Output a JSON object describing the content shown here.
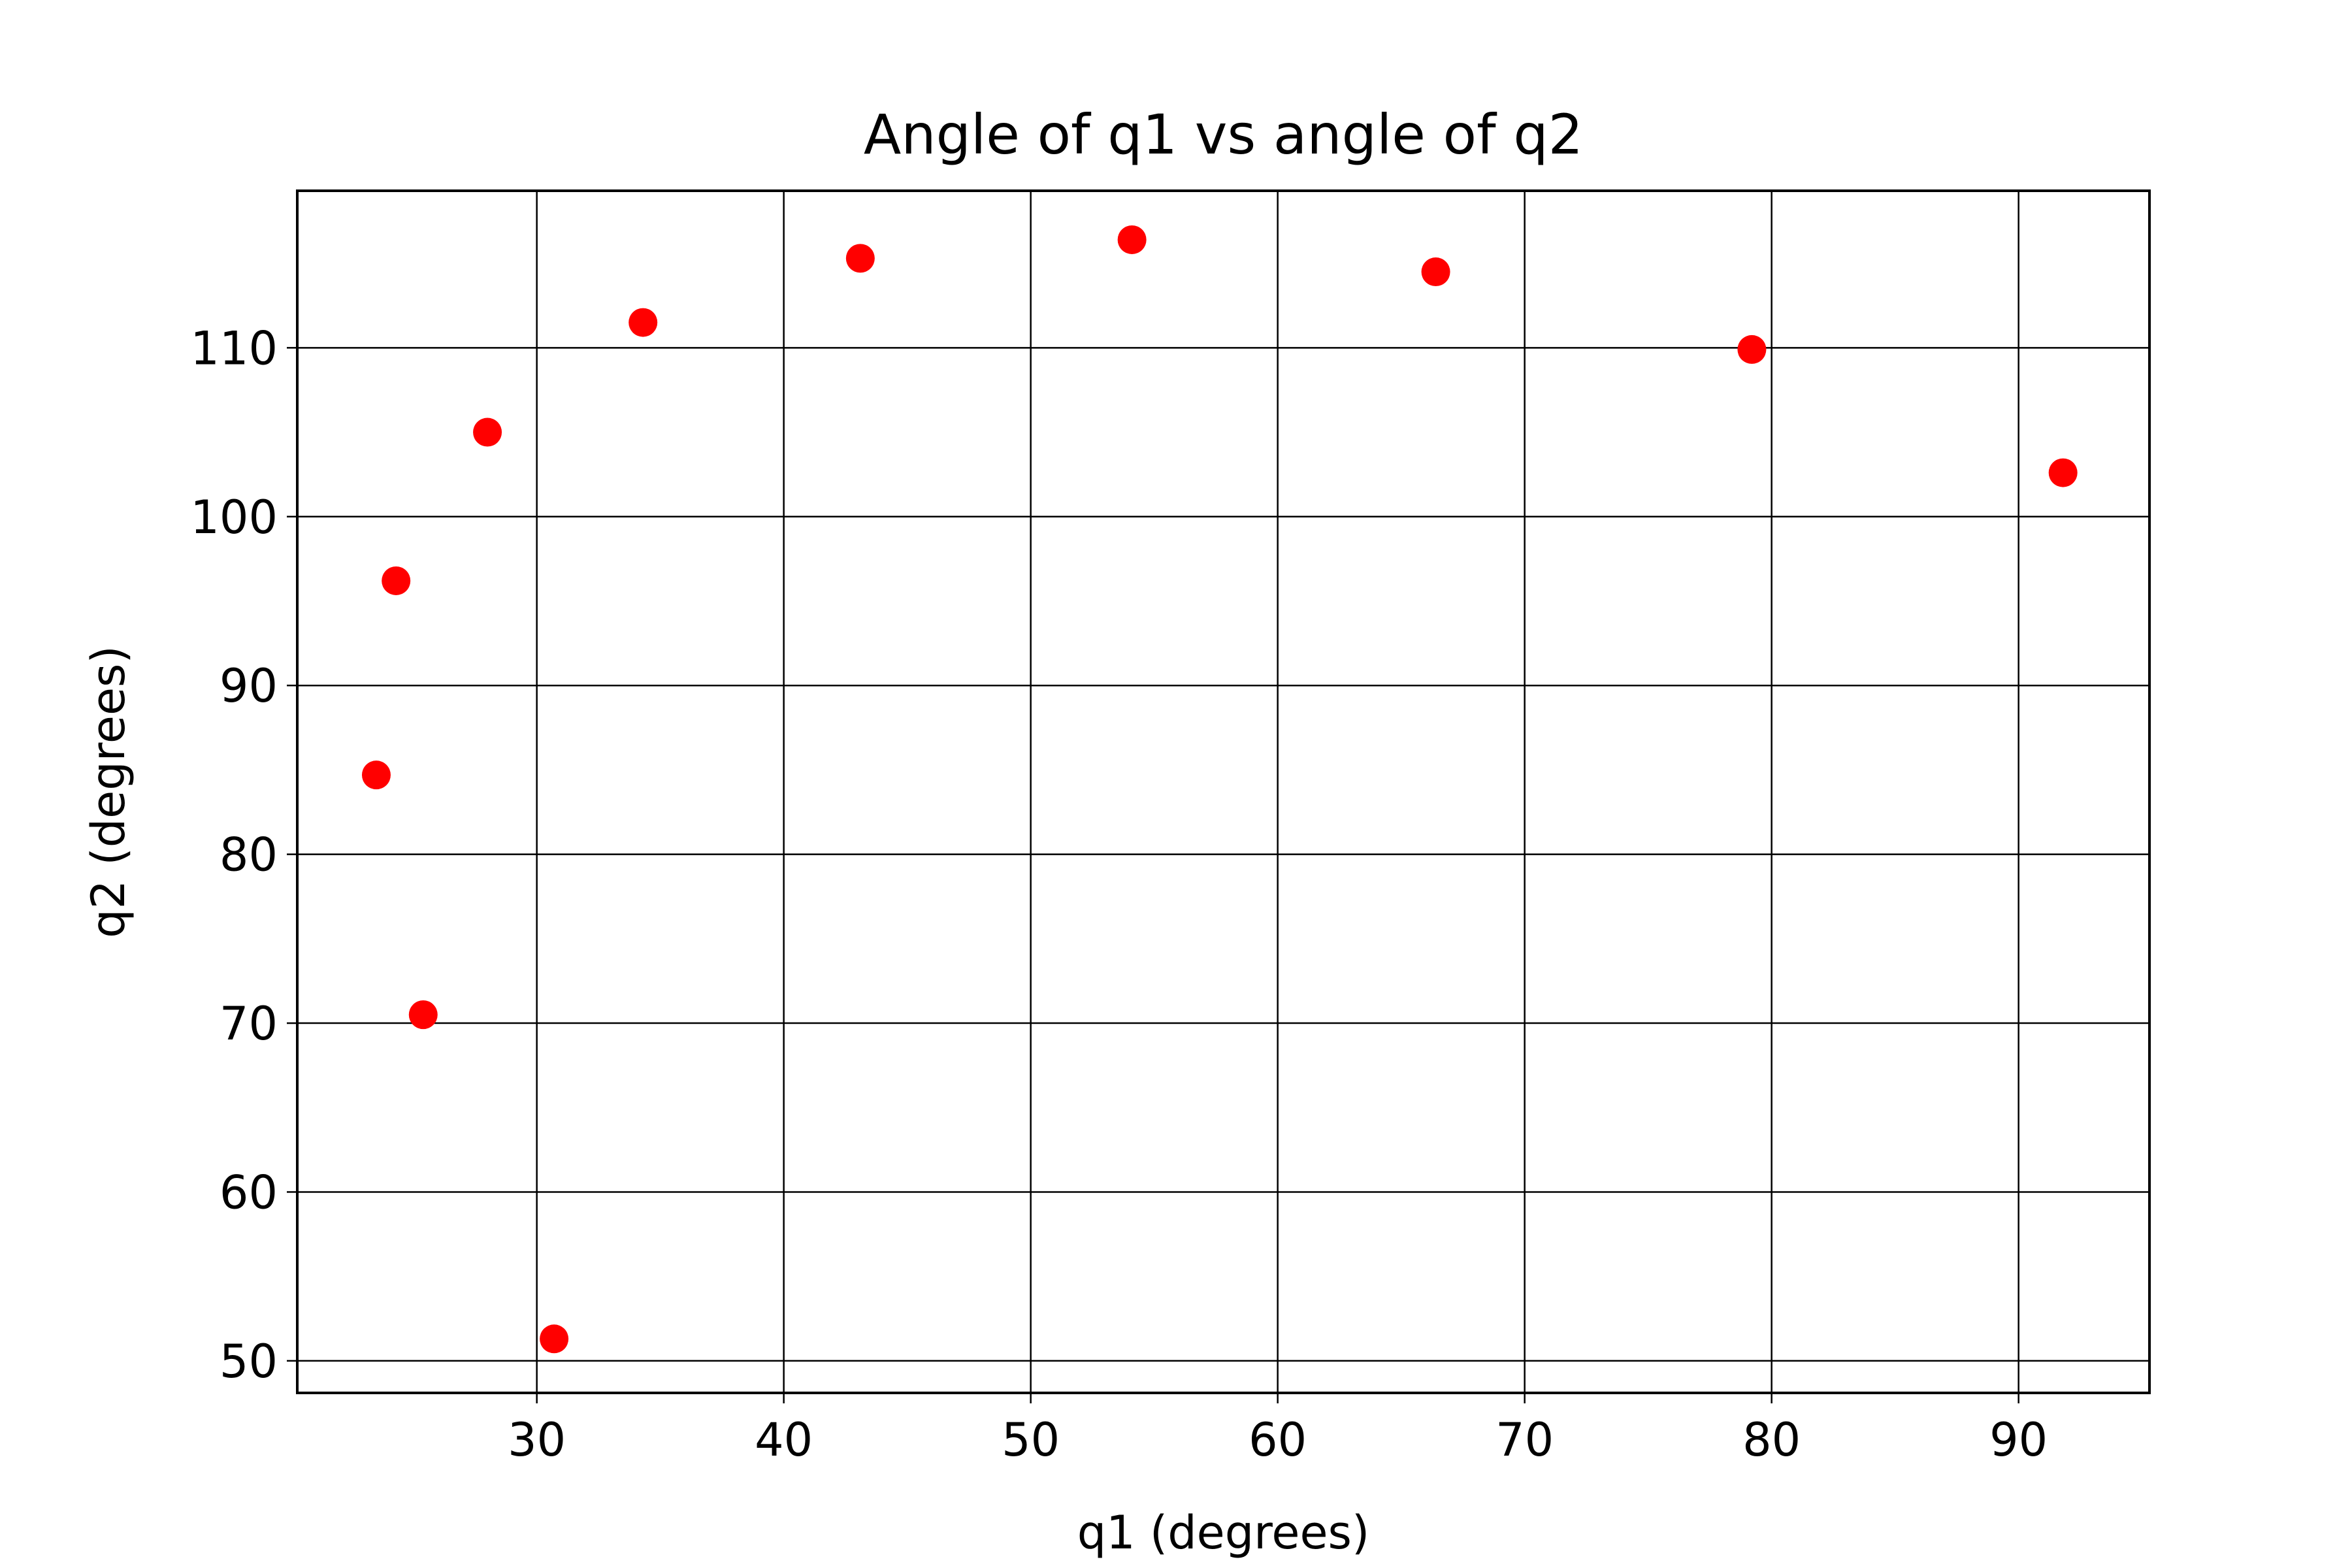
{
  "chart_data": {
    "type": "scatter",
    "title": "Angle of q1 vs angle of q2",
    "xlabel": "q1 (degrees)",
    "ylabel": "q2 (degrees)",
    "xlim": [
      20.3,
      95.3
    ],
    "ylim": [
      48.1,
      119.3
    ],
    "xticks": [
      30,
      40,
      50,
      60,
      70,
      80,
      90
    ],
    "yticks": [
      50,
      60,
      70,
      80,
      90,
      100,
      110
    ],
    "grid": true,
    "marker_color": "#ff0000",
    "x": [
      30.7,
      25.4,
      23.5,
      24.3,
      28.0,
      34.3,
      43.1,
      54.1,
      66.4,
      79.2,
      91.8
    ],
    "y": [
      51.3,
      70.5,
      84.7,
      96.2,
      105.0,
      111.5,
      115.3,
      116.4,
      114.5,
      109.9,
      102.6
    ]
  }
}
